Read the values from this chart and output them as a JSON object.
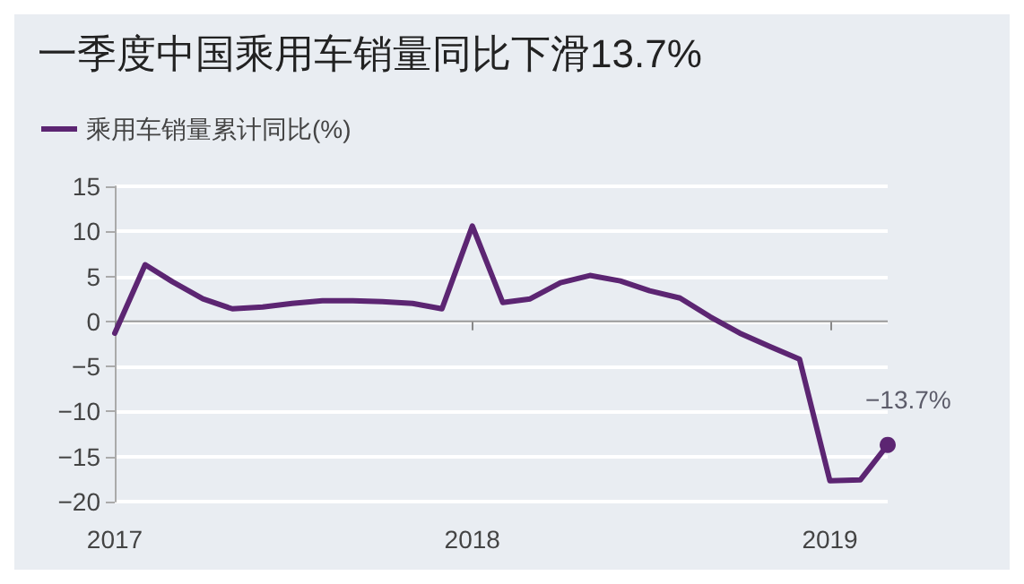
{
  "chart_data": {
    "type": "line",
    "title": "一季度中国乘用车销量同比下滑13.7%",
    "x": [
      "2017-01",
      "2017-02",
      "2017-03",
      "2017-04",
      "2017-05",
      "2017-06",
      "2017-07",
      "2017-08",
      "2017-09",
      "2017-10",
      "2017-11",
      "2017-12",
      "2018-01",
      "2018-02",
      "2018-03",
      "2018-04",
      "2018-05",
      "2018-06",
      "2018-07",
      "2018-08",
      "2018-09",
      "2018-10",
      "2018-11",
      "2018-12",
      "2019-01",
      "2019-02",
      "2019-03"
    ],
    "series": [
      {
        "name": "乘用车销量累计同比(%)",
        "color": "#5c2572",
        "values": [
          -1.3,
          6.3,
          4.4,
          2.5,
          1.4,
          1.6,
          2.0,
          2.3,
          2.3,
          2.2,
          2.0,
          1.4,
          10.6,
          2.1,
          2.5,
          4.3,
          5.1,
          4.5,
          3.4,
          2.6,
          0.5,
          -1.3,
          -2.8,
          -4.2,
          -17.7,
          -17.6,
          -13.7
        ],
        "value_labels": [
          null,
          null,
          null,
          null,
          null,
          null,
          null,
          null,
          null,
          null,
          null,
          null,
          null,
          null,
          null,
          null,
          null,
          null,
          null,
          null,
          null,
          null,
          null,
          null,
          null,
          null,
          "−13.7%"
        ]
      }
    ],
    "xlim": [
      "2017-01",
      "2019-03"
    ],
    "xticks": [
      {
        "value": "2017-01",
        "label": "2017"
      },
      {
        "value": "2018-01",
        "label": "2018"
      },
      {
        "value": "2019-01",
        "label": "2019"
      }
    ],
    "ylim": [
      -20,
      15
    ],
    "yticks": [
      -20,
      -15,
      -10,
      -5,
      0,
      5,
      10,
      15
    ],
    "grid": "y",
    "legend": "top left",
    "marker": "none",
    "line_style": "solid"
  }
}
